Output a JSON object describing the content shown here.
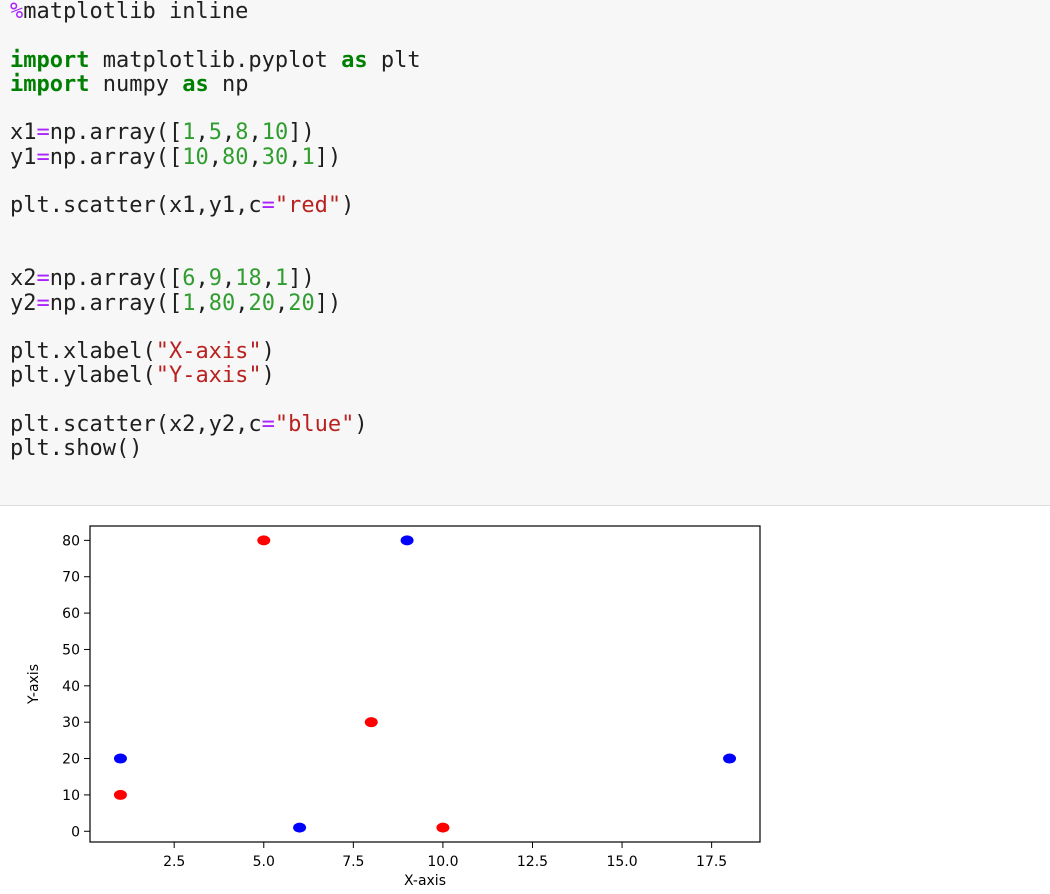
{
  "code_cell": {
    "lines": [
      [
        {
          "t": "%",
          "c": "magic"
        },
        {
          "t": "matplotlib inline",
          "c": "plain"
        }
      ],
      [],
      [
        {
          "t": "import",
          "c": "kw"
        },
        {
          "t": " matplotlib.pyplot ",
          "c": "plain"
        },
        {
          "t": "as",
          "c": "kw"
        },
        {
          "t": " plt",
          "c": "plain"
        }
      ],
      [
        {
          "t": "import",
          "c": "kw"
        },
        {
          "t": " numpy ",
          "c": "plain"
        },
        {
          "t": "as",
          "c": "kw"
        },
        {
          "t": " np",
          "c": "plain"
        }
      ],
      [],
      [
        {
          "t": "x1",
          "c": "plain"
        },
        {
          "t": "=",
          "c": "op"
        },
        {
          "t": "np.array([",
          "c": "plain"
        },
        {
          "t": "1",
          "c": "num"
        },
        {
          "t": ",",
          "c": "plain"
        },
        {
          "t": "5",
          "c": "num"
        },
        {
          "t": ",",
          "c": "plain"
        },
        {
          "t": "8",
          "c": "num"
        },
        {
          "t": ",",
          "c": "plain"
        },
        {
          "t": "10",
          "c": "num"
        },
        {
          "t": "])",
          "c": "plain"
        }
      ],
      [
        {
          "t": "y1",
          "c": "plain"
        },
        {
          "t": "=",
          "c": "op"
        },
        {
          "t": "np.array([",
          "c": "plain"
        },
        {
          "t": "10",
          "c": "num"
        },
        {
          "t": ",",
          "c": "plain"
        },
        {
          "t": "80",
          "c": "num"
        },
        {
          "t": ",",
          "c": "plain"
        },
        {
          "t": "30",
          "c": "num"
        },
        {
          "t": ",",
          "c": "plain"
        },
        {
          "t": "1",
          "c": "num"
        },
        {
          "t": "])",
          "c": "plain"
        }
      ],
      [],
      [
        {
          "t": "plt.scatter(x1,y1,c",
          "c": "plain"
        },
        {
          "t": "=",
          "c": "op"
        },
        {
          "t": "\"red\"",
          "c": "str"
        },
        {
          "t": ")",
          "c": "plain"
        }
      ],
      [],
      [],
      [
        {
          "t": "x2",
          "c": "plain"
        },
        {
          "t": "=",
          "c": "op"
        },
        {
          "t": "np.array([",
          "c": "plain"
        },
        {
          "t": "6",
          "c": "num"
        },
        {
          "t": ",",
          "c": "plain"
        },
        {
          "t": "9",
          "c": "num"
        },
        {
          "t": ",",
          "c": "plain"
        },
        {
          "t": "18",
          "c": "num"
        },
        {
          "t": ",",
          "c": "plain"
        },
        {
          "t": "1",
          "c": "num"
        },
        {
          "t": "])",
          "c": "plain"
        }
      ],
      [
        {
          "t": "y2",
          "c": "plain"
        },
        {
          "t": "=",
          "c": "op"
        },
        {
          "t": "np.array([",
          "c": "plain"
        },
        {
          "t": "1",
          "c": "num"
        },
        {
          "t": ",",
          "c": "plain"
        },
        {
          "t": "80",
          "c": "num"
        },
        {
          "t": ",",
          "c": "plain"
        },
        {
          "t": "20",
          "c": "num"
        },
        {
          "t": ",",
          "c": "plain"
        },
        {
          "t": "20",
          "c": "num"
        },
        {
          "t": "])",
          "c": "plain"
        }
      ],
      [],
      [
        {
          "t": "plt.xlabel(",
          "c": "plain"
        },
        {
          "t": "\"X-axis\"",
          "c": "str"
        },
        {
          "t": ")",
          "c": "plain"
        }
      ],
      [
        {
          "t": "plt.ylabel(",
          "c": "plain"
        },
        {
          "t": "\"Y-axis\"",
          "c": "str"
        },
        {
          "t": ")",
          "c": "plain"
        }
      ],
      [],
      [
        {
          "t": "plt.scatter(x2,y2,c",
          "c": "plain"
        },
        {
          "t": "=",
          "c": "op"
        },
        {
          "t": "\"blue\"",
          "c": "str"
        },
        {
          "t": ")",
          "c": "plain"
        }
      ],
      [
        {
          "t": "plt.show()",
          "c": "plain"
        }
      ]
    ]
  },
  "chart_data": {
    "type": "scatter",
    "xlabel": "X-axis",
    "ylabel": "Y-axis",
    "xlim": [
      0.15,
      18.85
    ],
    "ylim": [
      -2.95,
      83.95
    ],
    "xticks": [
      2.5,
      5.0,
      7.5,
      10.0,
      12.5,
      15.0,
      17.5
    ],
    "xtick_labels": [
      "2.5",
      "5.0",
      "7.5",
      "10.0",
      "12.5",
      "15.0",
      "17.5"
    ],
    "yticks": [
      0,
      10,
      20,
      30,
      40,
      50,
      60,
      70,
      80
    ],
    "ytick_labels": [
      "0",
      "10",
      "20",
      "30",
      "40",
      "50",
      "60",
      "70",
      "80"
    ],
    "grid": false,
    "series": [
      {
        "color": "#ff0000",
        "x": [
          1,
          5,
          8,
          10
        ],
        "y": [
          10,
          80,
          30,
          1
        ]
      },
      {
        "color": "#0000ff",
        "x": [
          6,
          9,
          18,
          1
        ],
        "y": [
          1,
          80,
          20,
          20
        ]
      }
    ]
  }
}
